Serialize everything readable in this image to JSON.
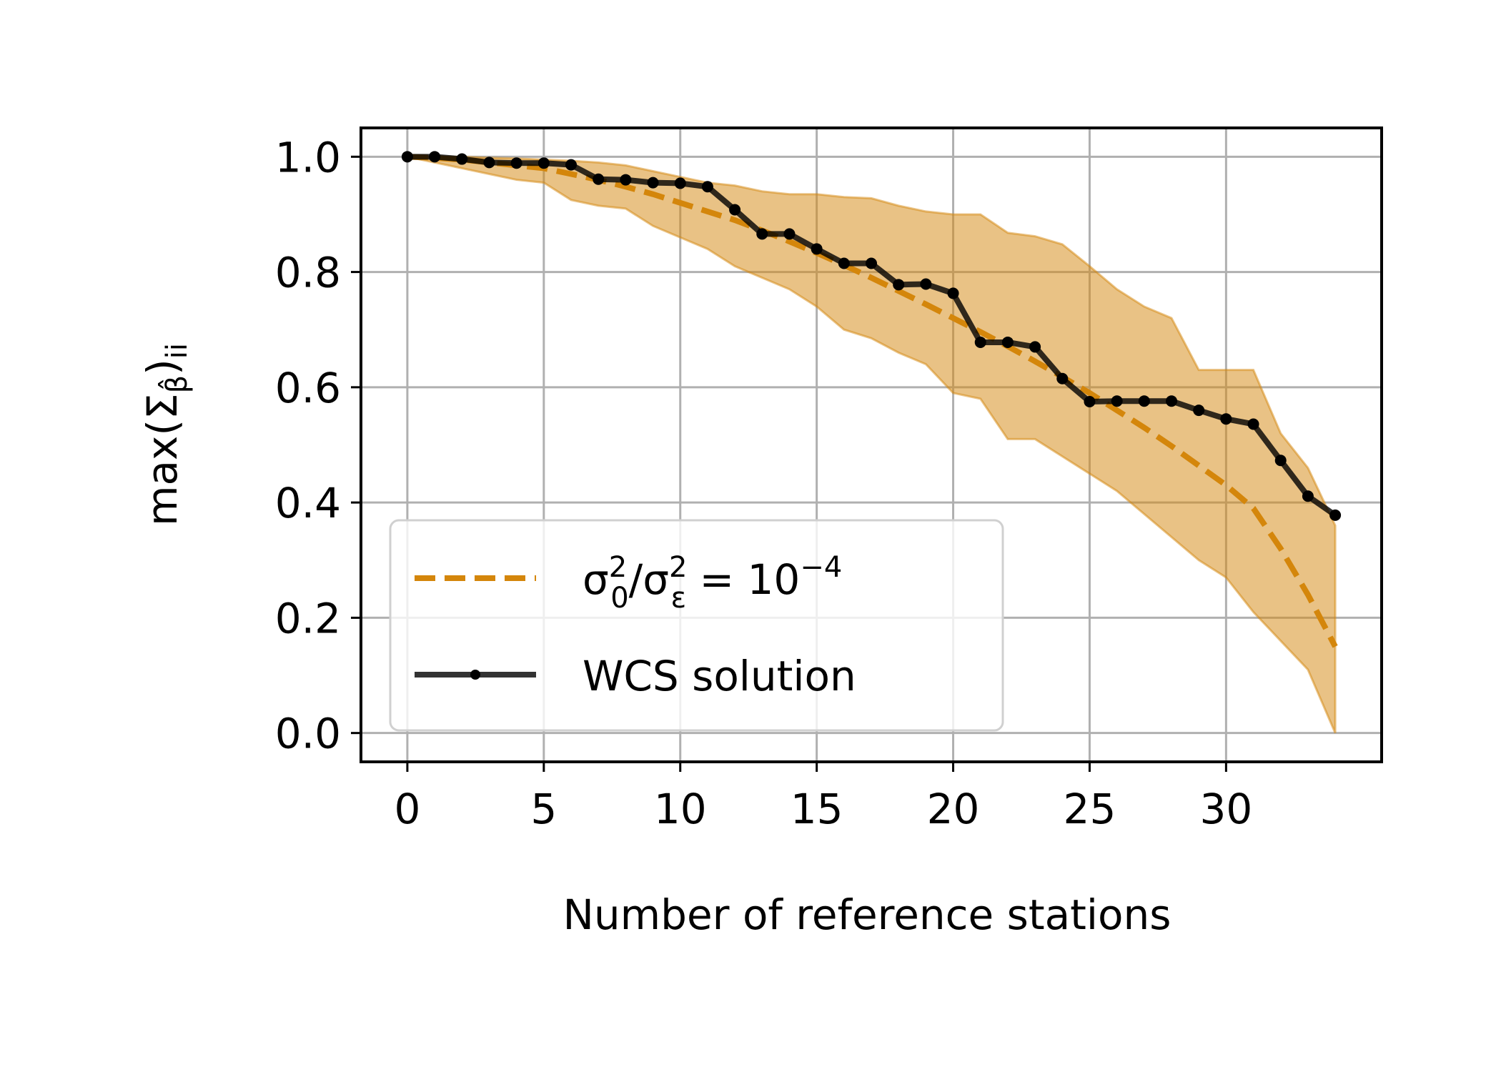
{
  "chart_data": {
    "type": "line",
    "title": "",
    "xlabel": "Number of reference stations",
    "ylabel": "max(Σβ̂)ii",
    "ylabel_parts": {
      "prefix": "max(Σ",
      "sub": "β̂",
      "suffix": ")",
      "sub2": "ii"
    },
    "xlim": [
      -1.7,
      35.7
    ],
    "ylim": [
      -0.05,
      1.05
    ],
    "xticks": [
      0,
      5,
      10,
      15,
      20,
      25,
      30
    ],
    "yticks": [
      0.0,
      0.2,
      0.4,
      0.6,
      0.8,
      1.0
    ],
    "grid": true,
    "legend_position": "lower-left",
    "x": [
      0,
      1,
      2,
      3,
      4,
      5,
      6,
      7,
      8,
      9,
      10,
      11,
      12,
      13,
      14,
      15,
      16,
      17,
      18,
      19,
      20,
      21,
      22,
      23,
      24,
      25,
      26,
      27,
      28,
      29,
      30,
      31,
      32,
      33,
      34
    ],
    "series": [
      {
        "name": "σ0²/σε² = 10⁻⁴",
        "legend_parts": {
          "a": "σ",
          "a_sup": "2",
          "a_sub": "0",
          "slash": "/σ",
          "b_sup": "2",
          "b_sub": "ε",
          "eq": " = 10",
          "exp": "−4"
        },
        "style": "dashed",
        "color": "#d4860b",
        "values": [
          1.0,
          0.998,
          0.995,
          0.99,
          0.985,
          0.98,
          0.97,
          0.96,
          0.948,
          0.935,
          0.92,
          0.905,
          0.89,
          0.872,
          0.853,
          0.833,
          0.812,
          0.79,
          0.767,
          0.744,
          0.72,
          0.696,
          0.671,
          0.645,
          0.618,
          0.59,
          0.56,
          0.53,
          0.498,
          0.464,
          0.43,
          0.39,
          0.32,
          0.24,
          0.15
        ],
        "band_upper": [
          1.0,
          1.0,
          1.0,
          0.998,
          0.997,
          0.995,
          0.993,
          0.99,
          0.985,
          0.975,
          0.965,
          0.955,
          0.95,
          0.94,
          0.935,
          0.935,
          0.93,
          0.928,
          0.915,
          0.905,
          0.9,
          0.9,
          0.868,
          0.862,
          0.848,
          0.81,
          0.77,
          0.74,
          0.72,
          0.63,
          0.63,
          0.63,
          0.52,
          0.46,
          0.36
        ],
        "band_lower": [
          1.0,
          0.99,
          0.98,
          0.97,
          0.96,
          0.955,
          0.925,
          0.915,
          0.91,
          0.88,
          0.86,
          0.84,
          0.81,
          0.79,
          0.77,
          0.74,
          0.7,
          0.685,
          0.66,
          0.64,
          0.59,
          0.58,
          0.51,
          0.51,
          0.48,
          0.45,
          0.42,
          0.38,
          0.34,
          0.3,
          0.27,
          0.21,
          0.16,
          0.11,
          0.0
        ]
      },
      {
        "name": "WCS solution",
        "style": "solid-marker",
        "color": "#000000",
        "values": [
          1.0,
          1.0,
          0.996,
          0.99,
          0.989,
          0.989,
          0.986,
          0.961,
          0.96,
          0.955,
          0.954,
          0.948,
          0.908,
          0.866,
          0.866,
          0.84,
          0.815,
          0.815,
          0.778,
          0.779,
          0.763,
          0.678,
          0.678,
          0.67,
          0.615,
          0.575,
          0.576,
          0.576,
          0.576,
          0.56,
          0.545,
          0.536,
          0.473,
          0.411,
          0.378
        ]
      }
    ]
  }
}
